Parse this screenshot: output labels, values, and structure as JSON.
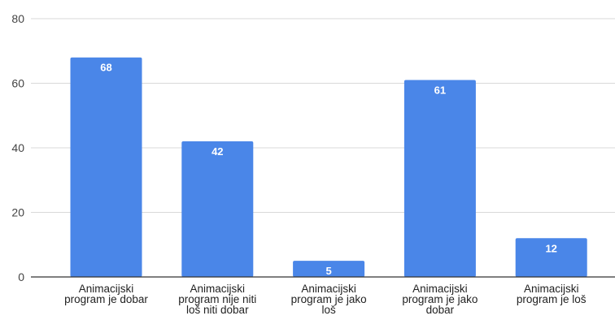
{
  "chart_data": {
    "type": "bar",
    "categories": [
      [
        "Animacijski",
        "program je dobar"
      ],
      [
        "Animacijski",
        "program nije niti",
        "loš niti dobar"
      ],
      [
        "Animacijski",
        "program je jako",
        "loš"
      ],
      [
        "Animacijski",
        "program je jako",
        "dobar"
      ],
      [
        "Animacijski",
        "program je loš"
      ]
    ],
    "values": [
      68,
      42,
      5,
      61,
      12
    ],
    "data_labels": [
      "68",
      "42",
      "5",
      "61",
      "12"
    ],
    "title": "",
    "xlabel": "",
    "ylabel": "",
    "ylim": [
      0,
      80
    ],
    "yticks": [
      0,
      20,
      40,
      60,
      80
    ],
    "ytick_labels": [
      "0",
      "20",
      "40",
      "60",
      "80"
    ],
    "grid": true,
    "legend": "none",
    "colors": {
      "bar": "#4a86e8",
      "grid": "#d9d9d9",
      "axis": "#333333"
    }
  }
}
